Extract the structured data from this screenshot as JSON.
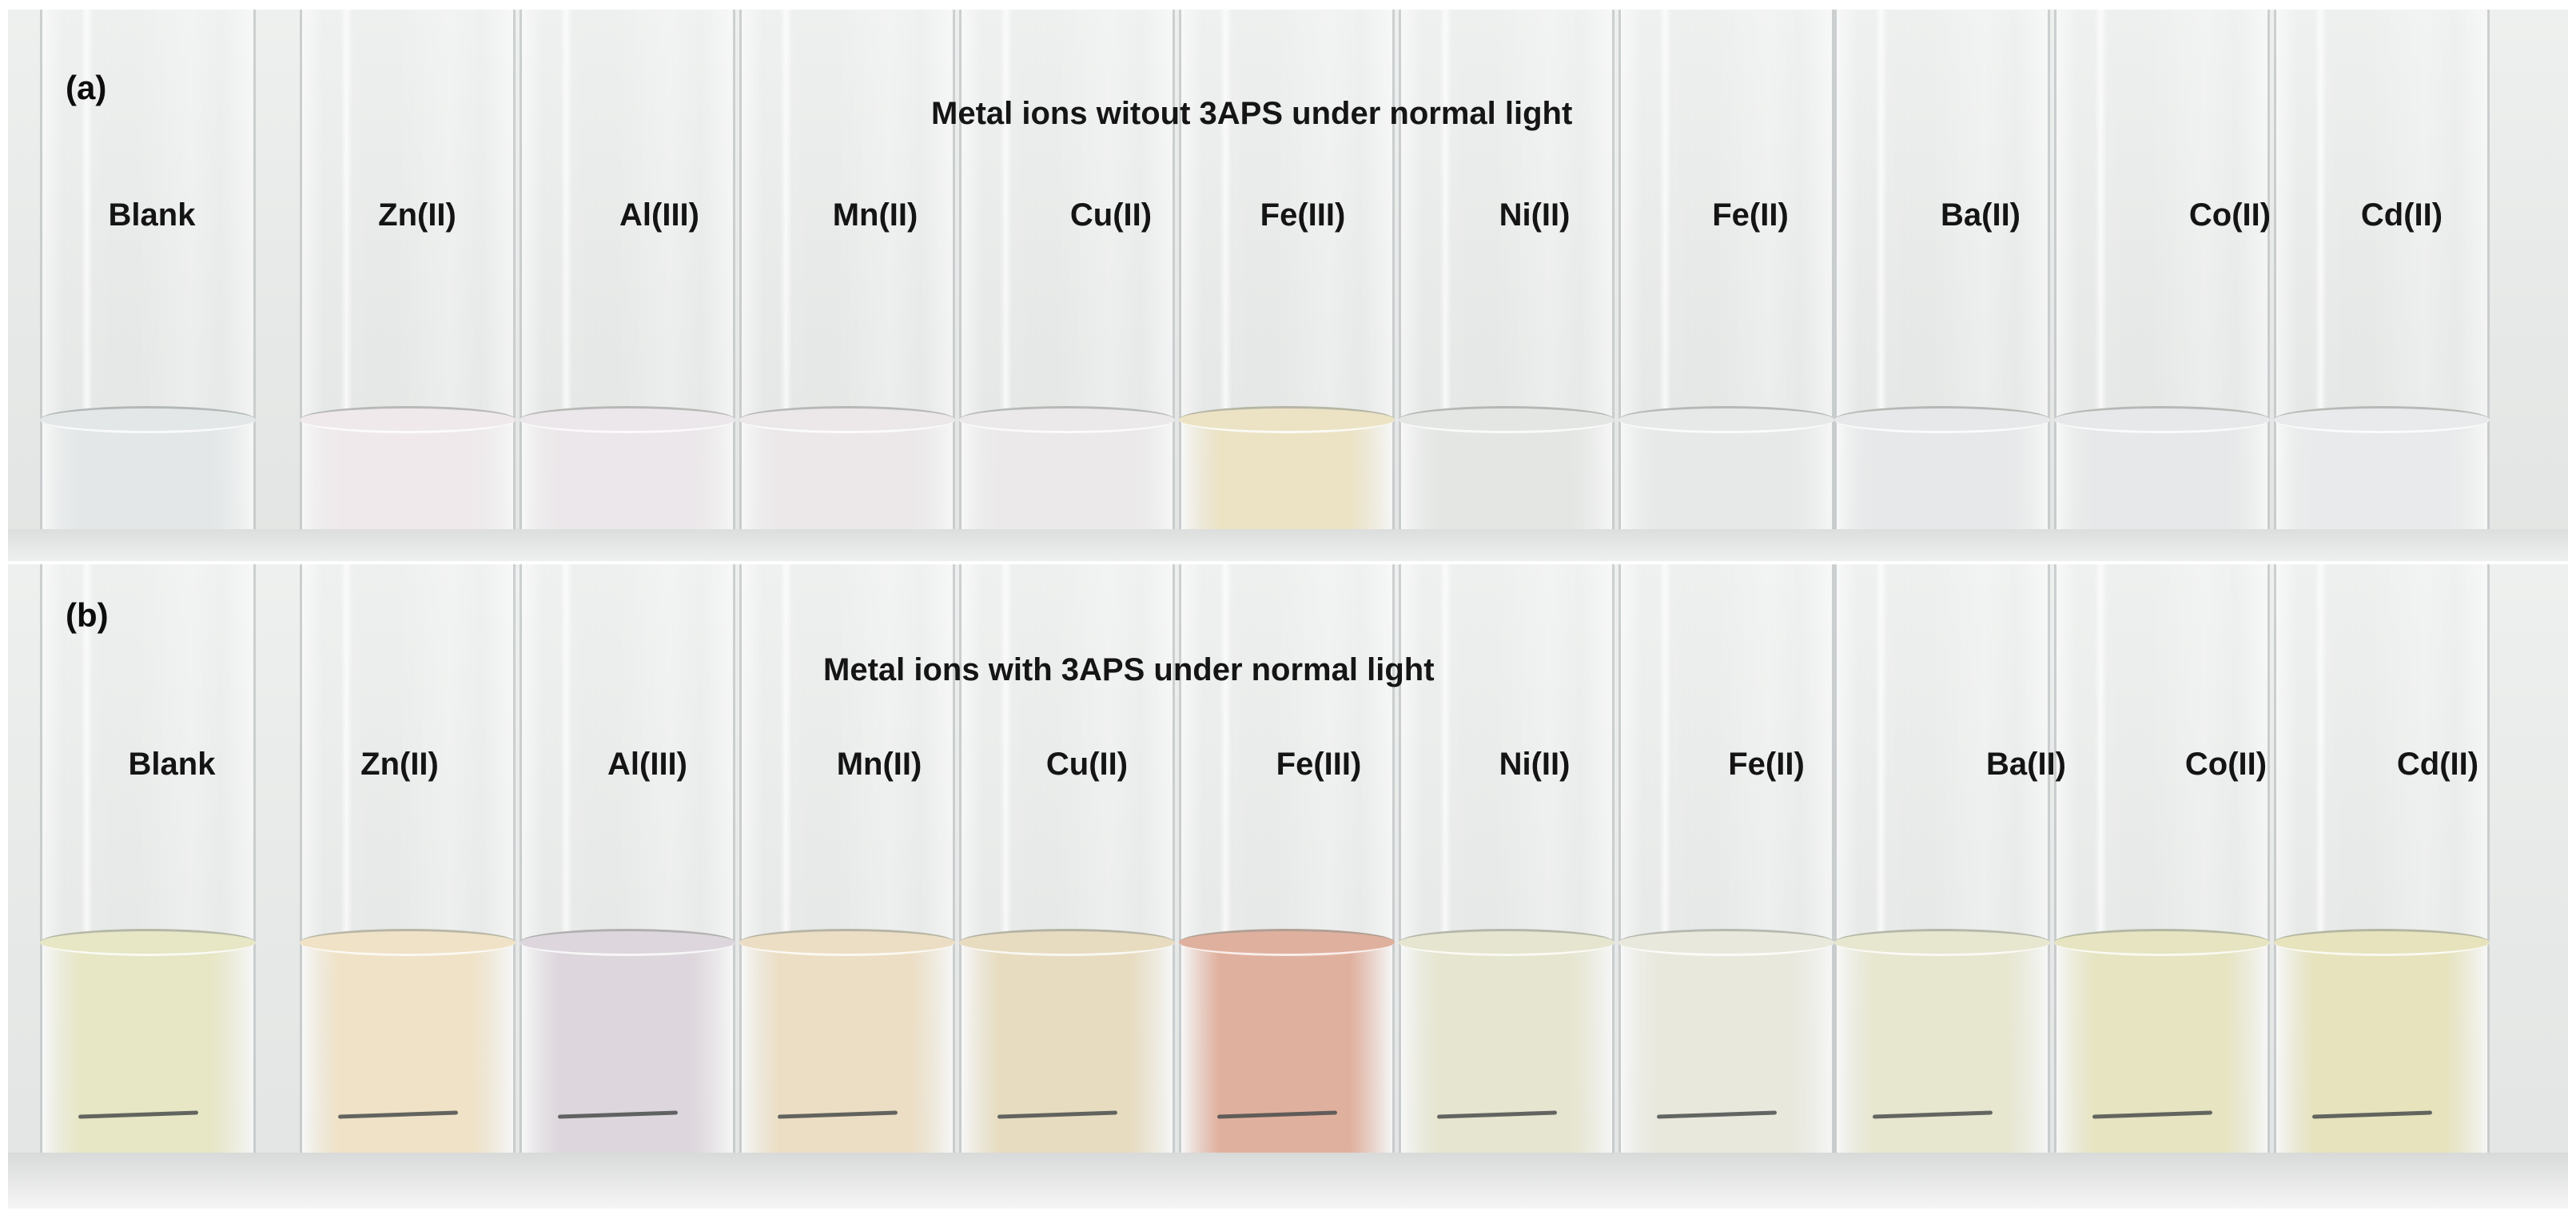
{
  "panels": [
    {
      "letter": "(a)",
      "title": "Metal ions witout 3APS under normal light",
      "labels": [
        "Blank",
        "Zn(II)",
        "Al(III)",
        "Mn(II)",
        "Cu(II)",
        "Fe(III)",
        "Ni(II)",
        "Fe(II)",
        "Ba(II)",
        "Co(II)",
        "Cd(II)"
      ],
      "liquid_colors": [
        "#e3e7e8",
        "#efe9ec",
        "#ece7ea",
        "#ece8ea",
        "#ebe9ea",
        "#ece3c5",
        "#e4e6e4",
        "#e7e9e9",
        "#e6e8e9",
        "#e6e8e9",
        "#e8eaeb"
      ]
    },
    {
      "letter": "(b)",
      "title": "Metal ions with 3APS under normal light",
      "labels": [
        "Blank",
        "Zn(II)",
        "Al(III)",
        "Mn(II)",
        "Cu(II)",
        "Fe(III)",
        "Ni(II)",
        "Fe(II)",
        "Ba(II)",
        "Co(II)",
        "Cd(II)"
      ],
      "liquid_colors": [
        "#e7e6c5",
        "#efe2c6",
        "#ddd6dc",
        "#ecdec4",
        "#e7dcc0",
        "#e0b09e",
        "#e6e5cf",
        "#e9e8dc",
        "#e7e6cf",
        "#e6e4c1",
        "#e6e3bd"
      ]
    }
  ]
}
